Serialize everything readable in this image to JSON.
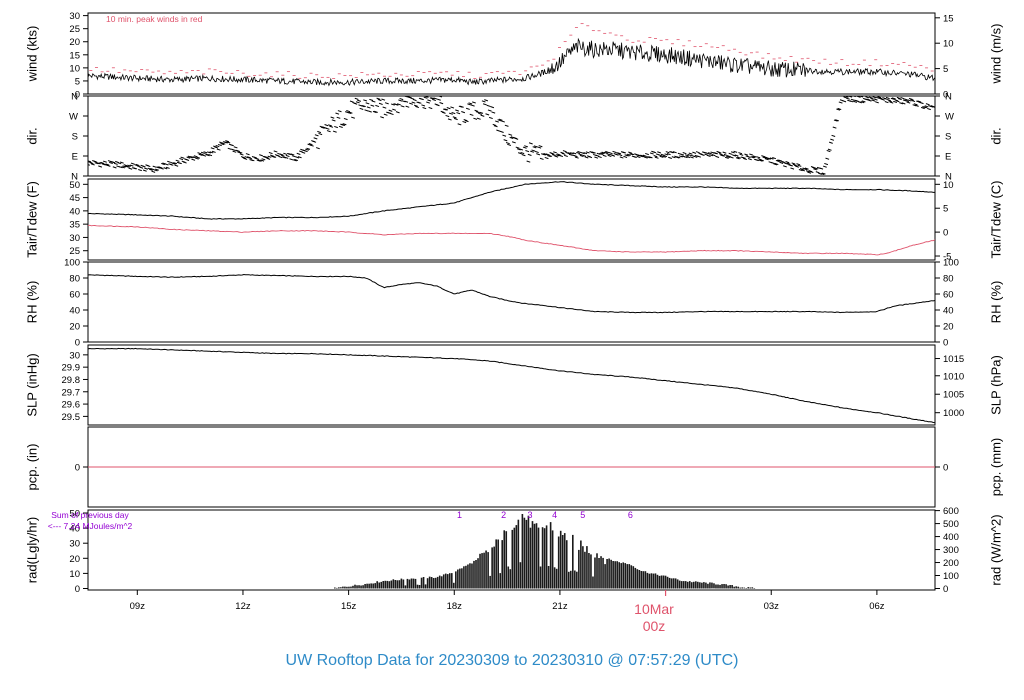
{
  "footer": {
    "title": "UW Rooftop Data for 20230309  to  20230310 @ 07:57:29  (UTC)",
    "day_label": "10Mar",
    "day_hour": "00z"
  },
  "colors": {
    "axis": "#000000",
    "red": "#DF536B",
    "purple": "#9400D3",
    "title": "#2E8BC8",
    "bars": "#1a1a1a"
  },
  "time_axis": {
    "range": [
      7.6,
      31.65
    ],
    "ticks": [
      {
        "t": 9,
        "label": "09z"
      },
      {
        "t": 12,
        "label": "12z"
      },
      {
        "t": 15,
        "label": "15z"
      },
      {
        "t": 18,
        "label": "18z"
      },
      {
        "t": 21,
        "label": "21z"
      },
      {
        "t": 27,
        "label": "03z"
      },
      {
        "t": 30,
        "label": "06z"
      }
    ],
    "day_tick": 24
  },
  "chart_data": [
    {
      "type": "line",
      "id": "wind",
      "ylabel_left": "wind (kts)",
      "ylabel_right": "wind (m/s)",
      "ylim": [
        0,
        31
      ],
      "yticks_left": [
        0,
        5,
        10,
        15,
        20,
        25,
        30
      ],
      "right_ticks": [
        {
          "label": "0",
          "value": 0
        },
        {
          "label": "5",
          "value": 9.72
        },
        {
          "label": "10",
          "value": 19.44
        },
        {
          "label": "15",
          "value": 29.16
        }
      ],
      "annotation": "10 min. peak winds in red",
      "series": [
        {
          "role": "wind",
          "x": [
            7.6,
            9,
            10,
            11,
            12,
            13,
            14,
            15,
            16,
            17,
            18,
            18.5,
            19,
            19.5,
            20,
            20.5,
            20.8,
            21,
            21.3,
            21.5,
            22,
            22.5,
            23,
            24,
            25,
            26,
            27,
            28,
            29,
            30,
            31,
            31.65
          ],
          "y": [
            7,
            6,
            5.5,
            6,
            5.5,
            5,
            4.5,
            4.5,
            5,
            5,
            5.5,
            4.5,
            5,
            5.5,
            6,
            8,
            10,
            12,
            16,
            18,
            17,
            17,
            16,
            15,
            13,
            11,
            9.5,
            9,
            8.5,
            8.5,
            7.5,
            6
          ]
        },
        {
          "role": "peak",
          "x": [
            7.6,
            9,
            10,
            11,
            12,
            13,
            14,
            15,
            16,
            17,
            18,
            18.5,
            19,
            19.5,
            20,
            20.5,
            20.8,
            21,
            21.3,
            21.5,
            22,
            22.5,
            23,
            24,
            25,
            26,
            27,
            28,
            29,
            30,
            31,
            31.65
          ],
          "y": [
            9.5,
            8.5,
            8,
            8.5,
            8,
            7.5,
            7,
            7,
            7.5,
            7.5,
            8,
            7,
            7.5,
            8,
            8.5,
            11,
            14,
            17,
            22,
            26,
            25,
            23,
            21,
            20,
            19,
            17,
            14,
            13,
            12,
            12,
            11,
            9
          ]
        }
      ]
    },
    {
      "type": "scatter",
      "id": "dir",
      "ylabel_left": "dir.",
      "ylabel_right": "dir.",
      "ylim": [
        0,
        360
      ],
      "category_ticks": [
        {
          "label": "N",
          "value": 0
        },
        {
          "label": "E",
          "value": 90
        },
        {
          "label": "S",
          "value": 180
        },
        {
          "label": "W",
          "value": 270
        },
        {
          "label": "N",
          "value": 360
        }
      ],
      "series": [
        {
          "x": [
            7.6,
            8.5,
            9.5,
            10.5,
            11,
            11.5,
            12,
            12.5,
            13,
            13.5,
            14,
            14.5,
            15,
            15.5,
            16,
            16.5,
            17,
            17.5,
            18,
            18.5,
            19,
            19.5,
            20,
            20.5,
            21,
            21.5,
            22,
            23,
            24,
            25,
            26,
            27,
            27.5,
            28,
            28.5,
            29,
            29.5,
            30,
            30.5,
            31,
            31.65
          ],
          "y": [
            60,
            50,
            30,
            80,
            100,
            150,
            90,
            80,
            100,
            80,
            150,
            220,
            290,
            320,
            300,
            340,
            350,
            340,
            260,
            290,
            300,
            180,
            110,
            90,
            100,
            95,
            95,
            95,
            95,
            95,
            95,
            70,
            50,
            30,
            20,
            350,
            345,
            345,
            340,
            335,
            300
          ]
        }
      ]
    },
    {
      "type": "line",
      "id": "temp",
      "ylabel_left": "Tair/Tdew (F)",
      "ylabel_right": "Tair/Tdew (C)",
      "ylim": [
        21.5,
        52
      ],
      "yticks_left": [
        25,
        30,
        35,
        40,
        45,
        50
      ],
      "right_ticks": [
        {
          "label": "-5",
          "value": 23
        },
        {
          "label": "0",
          "value": 32
        },
        {
          "label": "5",
          "value": 41
        },
        {
          "label": "10",
          "value": 50
        }
      ],
      "series": [
        {
          "role": "tair",
          "x": [
            7.6,
            9,
            10,
            11,
            12,
            13,
            14,
            15,
            16,
            17,
            18,
            19,
            20,
            21,
            21.5,
            22,
            23,
            24,
            25,
            26,
            27,
            28,
            29,
            30,
            31,
            31.65
          ],
          "y": [
            39,
            38.5,
            38,
            37,
            37,
            37.5,
            37.5,
            38,
            40,
            41.5,
            43,
            47,
            50,
            51,
            50.5,
            50,
            49.5,
            49,
            49,
            48.5,
            48.5,
            48.5,
            48,
            48,
            47.5,
            47
          ]
        },
        {
          "role": "tdew",
          "x": [
            7.6,
            9,
            10,
            11,
            12,
            13,
            14,
            15,
            16,
            17,
            18,
            19,
            19.5,
            20,
            20.5,
            21,
            21.5,
            22,
            23,
            24,
            25,
            26,
            27,
            28,
            29,
            30,
            30.3,
            31,
            31.65
          ],
          "y": [
            34.5,
            34,
            33,
            32.5,
            32,
            32.5,
            32.5,
            32,
            31,
            31.5,
            31.5,
            31.5,
            30.5,
            29,
            28,
            27,
            26,
            25,
            24.5,
            24.5,
            25,
            25,
            24.5,
            24,
            24,
            23.5,
            24,
            27,
            29
          ]
        }
      ]
    },
    {
      "type": "line",
      "id": "rh",
      "ylabel_left": "RH (%)",
      "ylabel_right": "RH (%)",
      "ylim": [
        0,
        100
      ],
      "yticks_left": [
        0,
        20,
        40,
        60,
        80,
        100
      ],
      "right_ticks": [
        {
          "label": "0",
          "value": 0
        },
        {
          "label": "20",
          "value": 20
        },
        {
          "label": "40",
          "value": 40
        },
        {
          "label": "60",
          "value": 60
        },
        {
          "label": "80",
          "value": 80
        },
        {
          "label": "100",
          "value": 100
        }
      ],
      "series": [
        {
          "x": [
            7.6,
            9,
            10,
            11,
            12,
            13,
            14,
            15,
            15.5,
            16,
            16.5,
            17,
            17.5,
            18,
            18.5,
            19,
            19.5,
            20,
            20.5,
            21,
            22,
            23,
            24,
            25,
            26,
            27,
            28,
            29,
            30,
            30.5,
            31,
            31.65
          ],
          "y": [
            84,
            82,
            81,
            82,
            84,
            83,
            82,
            82,
            80,
            68,
            72,
            74,
            70,
            60,
            65,
            57,
            52,
            48,
            46,
            43,
            38,
            37,
            37,
            38,
            38,
            38,
            38,
            37,
            38,
            45,
            48,
            52
          ]
        }
      ]
    },
    {
      "type": "line",
      "id": "slp",
      "ylabel_left": "SLP (inHg)",
      "ylabel_right": "SLP (hPa)",
      "ylim": [
        29.43,
        30.08
      ],
      "yticks_left": [
        29.5,
        29.6,
        29.7,
        29.8,
        29.9,
        30.0
      ],
      "right_ticks": [
        {
          "label": "1000",
          "value": 29.53
        },
        {
          "label": "1005",
          "value": 29.68
        },
        {
          "label": "1010",
          "value": 29.83
        },
        {
          "label": "1015",
          "value": 29.97
        }
      ],
      "series": [
        {
          "x": [
            7.6,
            9,
            10,
            11,
            12,
            13,
            14,
            15,
            16,
            17,
            18,
            19,
            20,
            21,
            22,
            23,
            24,
            25,
            26,
            27,
            28,
            29,
            30,
            31,
            31.65
          ],
          "y": [
            30.05,
            30.05,
            30.04,
            30.03,
            30.02,
            30.01,
            30.01,
            30.0,
            29.99,
            29.98,
            29.97,
            29.95,
            29.91,
            29.87,
            29.84,
            29.82,
            29.79,
            29.76,
            29.73,
            29.68,
            29.62,
            29.57,
            29.53,
            29.48,
            29.45
          ]
        }
      ]
    },
    {
      "type": "line",
      "id": "pcp",
      "ylabel_left": "pcp. (in)",
      "ylabel_right": "pcp. (mm)",
      "ylim": [
        -0.5,
        0.5
      ],
      "yticks_left": [
        0
      ],
      "right_ticks": [
        {
          "label": "0",
          "value": 0
        }
      ],
      "series": [
        {
          "x": [
            7.6,
            31.65
          ],
          "y": [
            0,
            0
          ]
        }
      ]
    },
    {
      "type": "area",
      "id": "rad",
      "ylabel_left": "rad(Lgly/hr)",
      "ylabel_right": "rad (W/m^2)",
      "ylim": [
        -1,
        52
      ],
      "yticks_left": [
        0,
        10,
        20,
        30,
        40,
        50
      ],
      "right_ticks": [
        {
          "label": "0",
          "value": 0
        },
        {
          "label": "100",
          "value": 8.6
        },
        {
          "label": "200",
          "value": 17.2
        },
        {
          "label": "300",
          "value": 25.8
        },
        {
          "label": "400",
          "value": 34.4
        },
        {
          "label": "500",
          "value": 43
        },
        {
          "label": "600",
          "value": 51.6
        }
      ],
      "prev_day_note": [
        "Sum of previous day",
        "<--- 7.24 MJoules/m^2"
      ],
      "hour_marks": [
        {
          "t": 18.15,
          "label": "1"
        },
        {
          "t": 19.4,
          "label": "2"
        },
        {
          "t": 20.15,
          "label": "3"
        },
        {
          "t": 20.85,
          "label": "4"
        },
        {
          "t": 21.65,
          "label": "5"
        },
        {
          "t": 23,
          "label": "6"
        }
      ],
      "series": [
        {
          "x": [
            7.6,
            14.6,
            15,
            15.5,
            16,
            16.5,
            17,
            17.5,
            18,
            18.5,
            19,
            19.3,
            19.6,
            19.9,
            20.1,
            20.4,
            20.7,
            21,
            21.3,
            21.6,
            22,
            22.3,
            22.6,
            23,
            23.3,
            23.6,
            24,
            24.5,
            25,
            25.5,
            26,
            26.3,
            26.6,
            31.65
          ],
          "y": [
            0,
            0,
            1.5,
            3,
            5,
            6,
            7,
            7.5,
            11,
            17,
            24,
            32,
            40,
            50,
            45,
            38,
            43,
            36,
            33,
            28,
            24,
            20,
            18,
            16,
            12,
            10,
            8,
            5,
            4,
            3,
            1.5,
            0.5,
            0,
            0
          ]
        }
      ]
    }
  ]
}
